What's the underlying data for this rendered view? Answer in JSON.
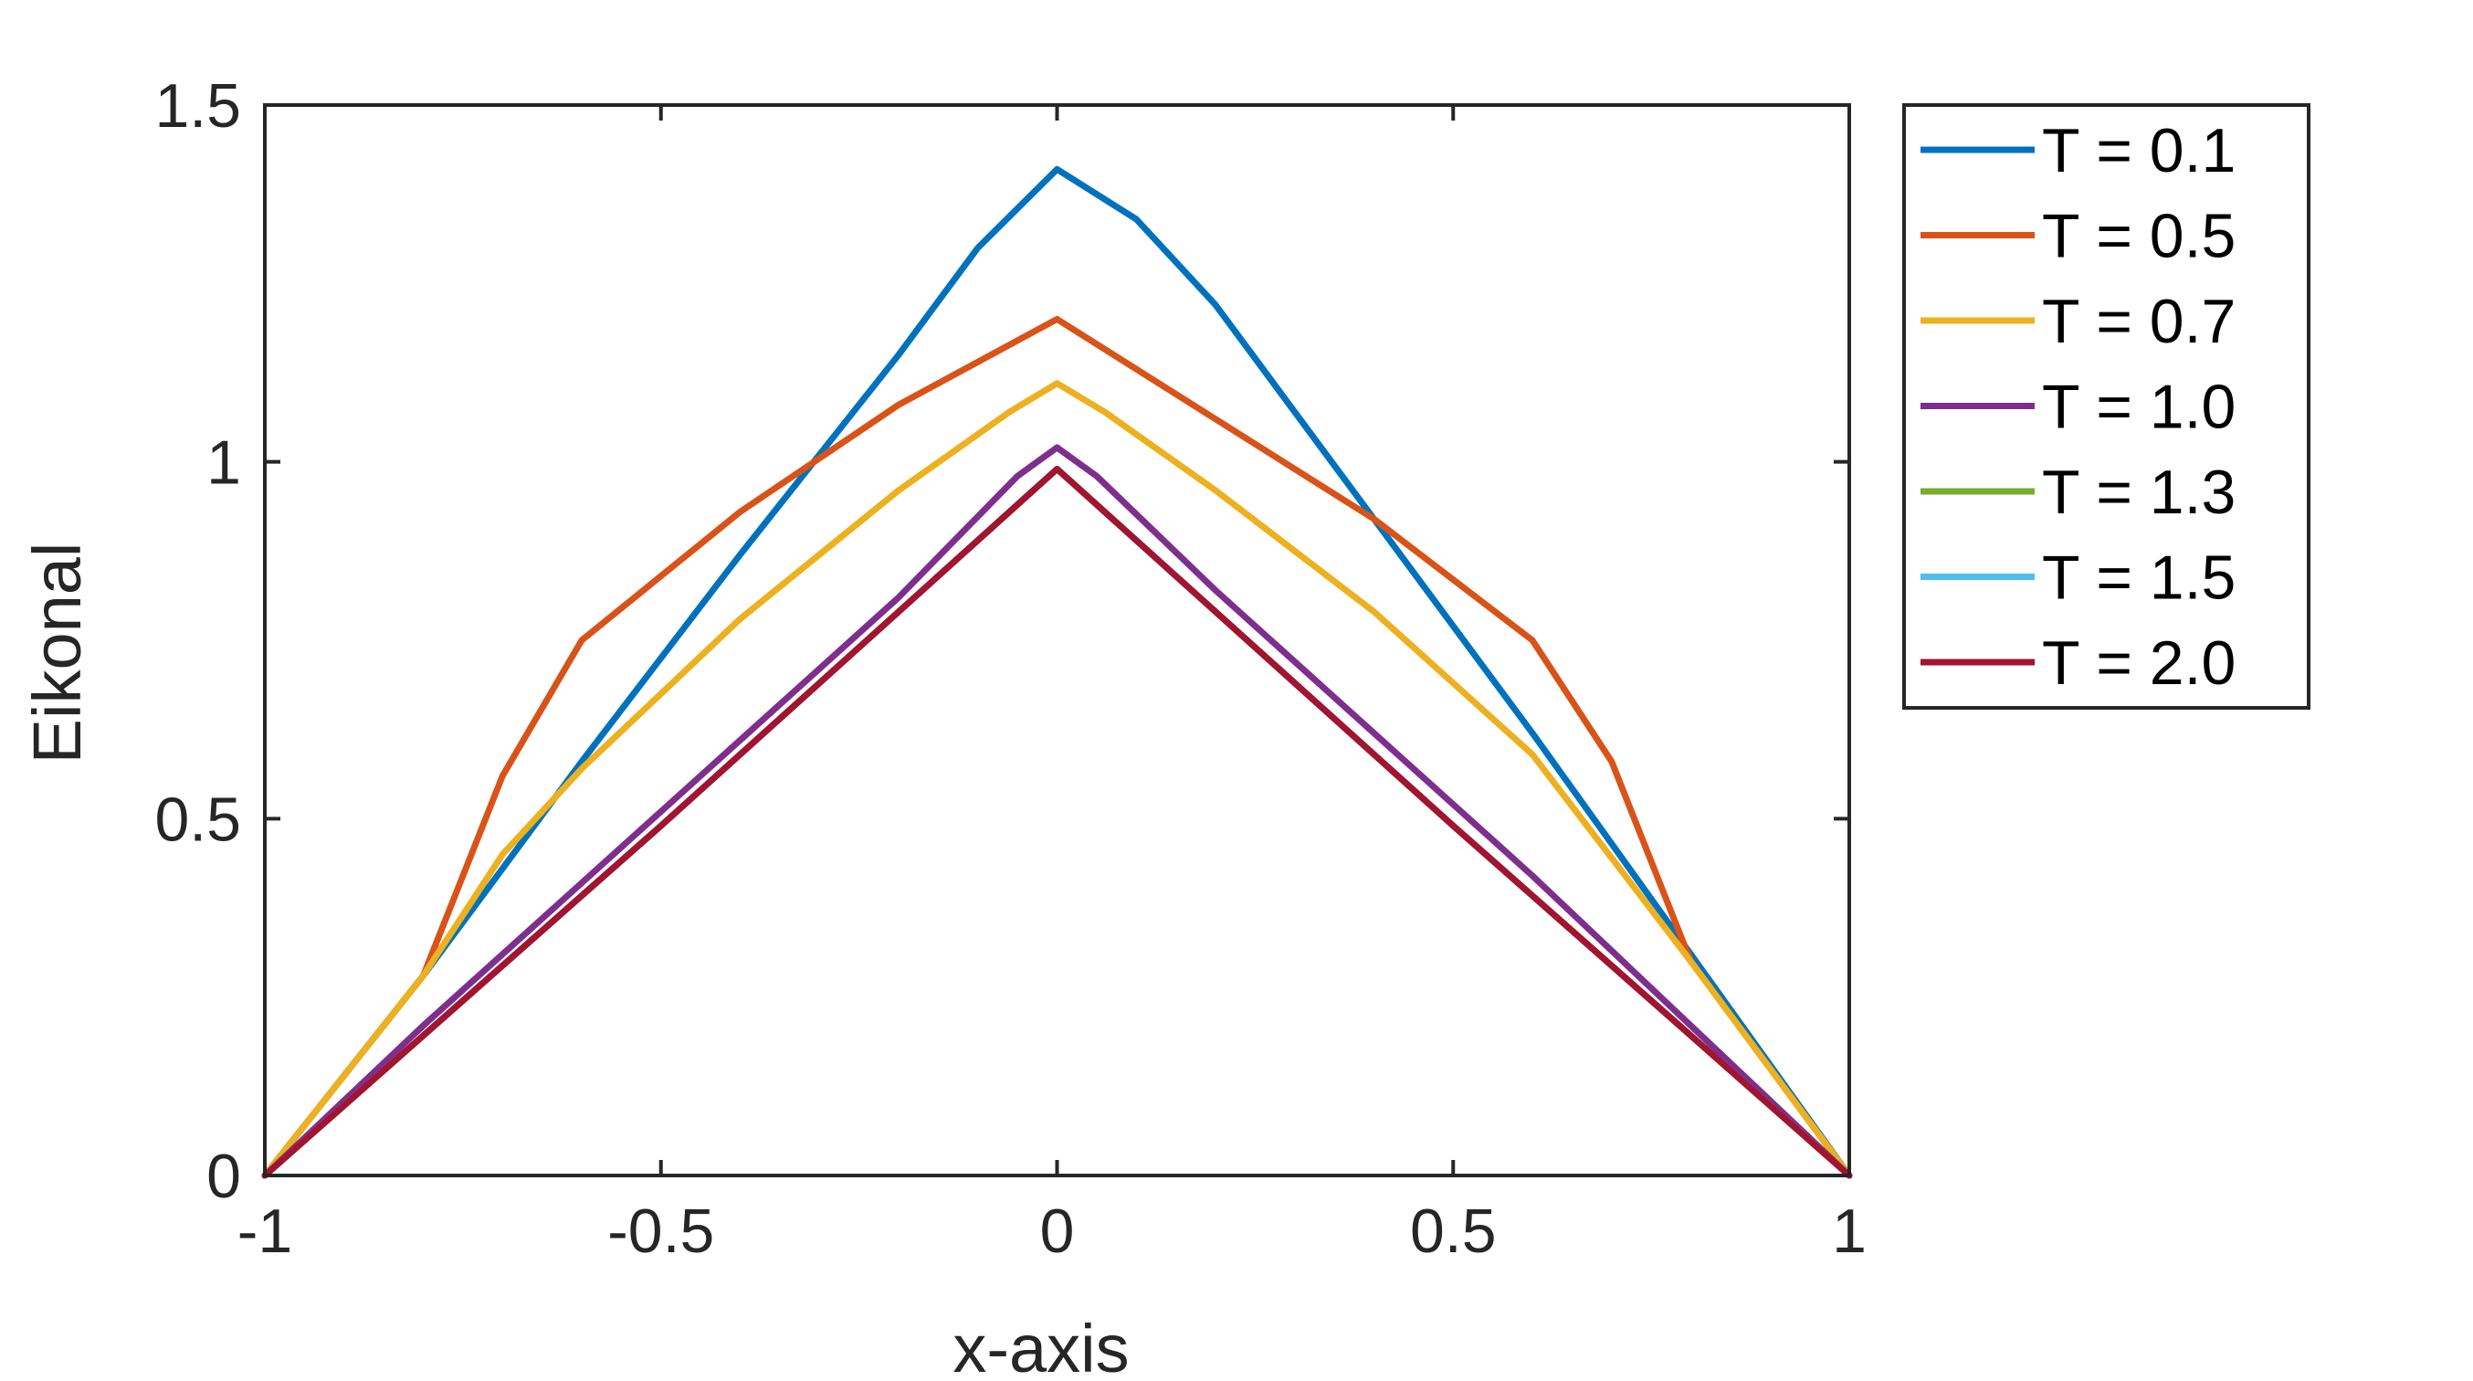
{
  "chart_data": {
    "type": "line",
    "title": "",
    "xlabel": "x-axis",
    "ylabel": "Eikonal",
    "xlim": [
      -1,
      1
    ],
    "ylim": [
      0,
      1.5
    ],
    "xticks": [
      -1,
      -0.5,
      0,
      0.5,
      1
    ],
    "xtick_labels": [
      "-1",
      "-0.5",
      "0",
      "0.5",
      "1"
    ],
    "yticks": [
      0,
      0.5,
      1,
      1.5
    ],
    "ytick_labels": [
      "0",
      "0.5",
      "1",
      "1.5"
    ],
    "grid": false,
    "legend_position": "outside right, top",
    "series": [
      {
        "name": "T = 0.1",
        "color": "#0072BD",
        "points": [
          [
            -1,
            0
          ],
          [
            -0.8,
            0.28
          ],
          [
            -0.6,
            0.58
          ],
          [
            -0.4,
            0.87
          ],
          [
            -0.2,
            1.15
          ],
          [
            -0.1,
            1.3
          ],
          [
            0,
            1.41
          ],
          [
            0.1,
            1.34
          ],
          [
            0.2,
            1.22
          ],
          [
            0.4,
            0.92
          ],
          [
            0.6,
            0.62
          ],
          [
            0.8,
            0.31
          ],
          [
            1,
            0
          ]
        ]
      },
      {
        "name": "T = 0.5",
        "color": "#D95319",
        "points": [
          [
            -1,
            0
          ],
          [
            -0.8,
            0.28
          ],
          [
            -0.7,
            0.56
          ],
          [
            -0.6,
            0.75
          ],
          [
            -0.4,
            0.93
          ],
          [
            -0.2,
            1.08
          ],
          [
            0,
            1.2
          ],
          [
            0.2,
            1.06
          ],
          [
            0.4,
            0.92
          ],
          [
            0.6,
            0.75
          ],
          [
            0.7,
            0.58
          ],
          [
            0.8,
            0.3
          ],
          [
            1,
            0
          ]
        ]
      },
      {
        "name": "T = 0.7",
        "color": "#EDB120",
        "points": [
          [
            -1,
            0
          ],
          [
            -0.8,
            0.28
          ],
          [
            -0.7,
            0.45
          ],
          [
            -0.6,
            0.57
          ],
          [
            -0.4,
            0.78
          ],
          [
            -0.2,
            0.96
          ],
          [
            -0.06,
            1.07
          ],
          [
            0,
            1.11
          ],
          [
            0.06,
            1.07
          ],
          [
            0.2,
            0.96
          ],
          [
            0.4,
            0.79
          ],
          [
            0.6,
            0.59
          ],
          [
            0.8,
            0.3
          ],
          [
            1,
            0
          ]
        ]
      },
      {
        "name": "T = 1.0",
        "color": "#7E2F8E",
        "points": [
          [
            -1,
            0
          ],
          [
            -0.8,
            0.21
          ],
          [
            -0.6,
            0.41
          ],
          [
            -0.4,
            0.61
          ],
          [
            -0.2,
            0.81
          ],
          [
            -0.05,
            0.98
          ],
          [
            0,
            1.02
          ],
          [
            0.05,
            0.98
          ],
          [
            0.2,
            0.82
          ],
          [
            0.4,
            0.62
          ],
          [
            0.6,
            0.42
          ],
          [
            0.8,
            0.21
          ],
          [
            1,
            0
          ]
        ]
      },
      {
        "name": "T = 1.3",
        "color": "#77AC30",
        "points": [
          [
            -1,
            0
          ],
          [
            -0.5,
            0.49
          ],
          [
            -0.03,
            0.96
          ],
          [
            0,
            0.99
          ],
          [
            0.03,
            0.96
          ],
          [
            0.5,
            0.49
          ],
          [
            1,
            0
          ]
        ]
      },
      {
        "name": "T = 1.5",
        "color": "#4DBEEE",
        "points": [
          [
            -1,
            0
          ],
          [
            -0.5,
            0.49
          ],
          [
            -0.03,
            0.96
          ],
          [
            0,
            0.99
          ],
          [
            0.03,
            0.96
          ],
          [
            0.5,
            0.49
          ],
          [
            1,
            0
          ]
        ]
      },
      {
        "name": "T = 2.0",
        "color": "#A2142F",
        "points": [
          [
            -1,
            0
          ],
          [
            -0.5,
            0.49
          ],
          [
            -0.03,
            0.96
          ],
          [
            0,
            0.99
          ],
          [
            0.03,
            0.96
          ],
          [
            0.5,
            0.49
          ],
          [
            1,
            0
          ]
        ]
      }
    ]
  }
}
